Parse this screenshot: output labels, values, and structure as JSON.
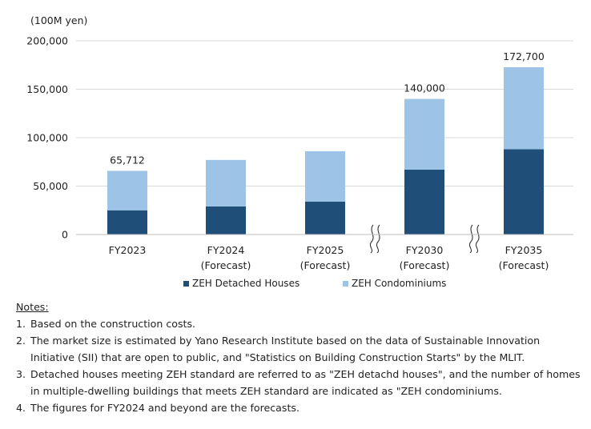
{
  "chart_data": {
    "type": "bar",
    "stacked": true,
    "unit_label": "(100M yen)",
    "categories": [
      {
        "name": "FY2023",
        "sub": ""
      },
      {
        "name": "FY2024",
        "sub": "(Forecast)"
      },
      {
        "name": "FY2025",
        "sub": "(Forecast)"
      },
      {
        "name": "FY2030",
        "sub": "(Forecast)"
      },
      {
        "name": "FY2035",
        "sub": "(Forecast)"
      }
    ],
    "series": [
      {
        "name": "ZEH Detached Houses",
        "color": "#1f4e79",
        "values": [
          25000,
          29000,
          34000,
          67000,
          88000
        ]
      },
      {
        "name": "ZEH Condominiums",
        "color": "#9dc3e6",
        "values": [
          40712,
          48000,
          52000,
          73000,
          84700
        ]
      }
    ],
    "totals": [
      "65,712",
      "",
      "",
      "140,000",
      "172,700"
    ],
    "ylim": [
      0,
      200000
    ],
    "yticks": [
      0,
      50000,
      100000,
      150000,
      200000
    ],
    "ytick_labels": [
      "0",
      "50,000",
      "100,000",
      "150,000",
      "200,000"
    ],
    "axis_breaks": [
      "before FY2030",
      "before FY2035"
    ],
    "grid": true,
    "legend": "bottom"
  },
  "legend": {
    "items": [
      {
        "label": "ZEH Detached Houses",
        "color": "#1f4e79"
      },
      {
        "label": "ZEH Condominiums",
        "color": "#9dc3e6"
      }
    ]
  },
  "notes": {
    "title": "Notes:",
    "items": [
      {
        "num": "1.",
        "text": "Based on the construction costs."
      },
      {
        "num": "2.",
        "text": "The market size is estimated by Yano Research Institute based on the data of Sustainable Innovation Initiative (SII) that are open to public, and \"Statistics on Building Construction Starts\" by the MLIT."
      },
      {
        "num": "3.",
        "text": "Detached houses meeting ZEH standard are referred to as \"ZEH detachd houses\", and the number of homes in multiple-dwelling buildings that meets ZEH standard are indicated as \"ZEH condominiums."
      },
      {
        "num": "4.",
        "text": "The figures for FY2024 and beyond are the forecasts."
      }
    ]
  }
}
